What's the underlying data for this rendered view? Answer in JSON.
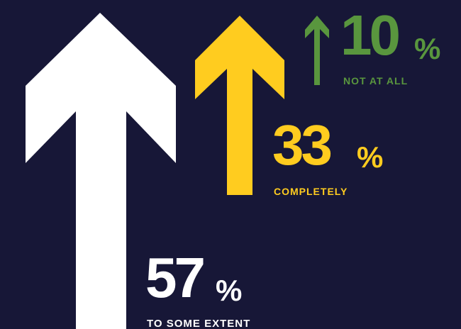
{
  "chart_data": {
    "type": "bar",
    "title": "",
    "unit": "%",
    "series": [
      {
        "value": 57,
        "value_label": "57",
        "unit_label": "%",
        "label": "TO SOME EXTENT",
        "color": "#FFFFFF"
      },
      {
        "value": 33,
        "value_label": "33",
        "unit_label": "%",
        "label": "COMPLETELY",
        "color": "#FFCC1F"
      },
      {
        "value": 10,
        "value_label": "10",
        "unit_label": "%",
        "label": "NOT AT ALL",
        "color": "#59963E"
      }
    ],
    "mark": "up-arrow",
    "background": "#171737"
  }
}
